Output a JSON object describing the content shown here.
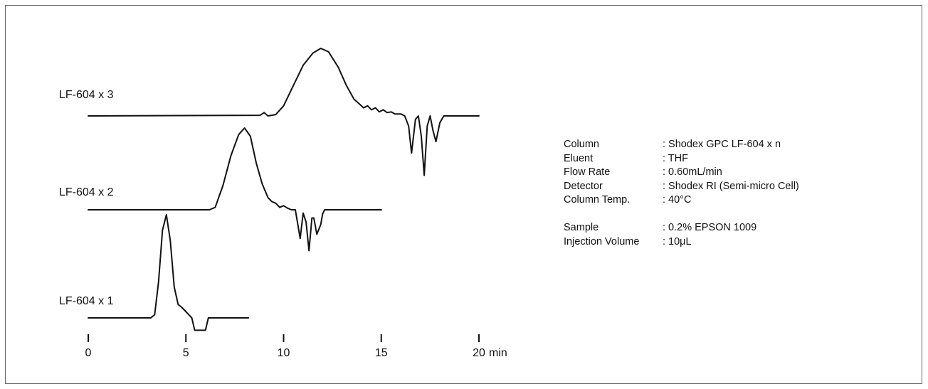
{
  "chart_data": {
    "type": "line",
    "xlabel": "min",
    "x_ticks": [
      "0",
      "5",
      "10",
      "15",
      "20"
    ],
    "x_tick_values": [
      0,
      5,
      10,
      15,
      20
    ],
    "x_unit_on_last_tick": "min",
    "xlim": [
      0,
      20
    ],
    "grid": false,
    "series": [
      {
        "name": "LF-604 x 3",
        "points": [
          [
            0,
            0
          ],
          [
            8.8,
            0.01
          ],
          [
            9.0,
            0.05
          ],
          [
            9.2,
            0.0
          ],
          [
            9.6,
            0.02
          ],
          [
            10.0,
            0.15
          ],
          [
            10.5,
            0.45
          ],
          [
            11.0,
            0.75
          ],
          [
            11.5,
            0.93
          ],
          [
            11.9,
            1.0
          ],
          [
            12.3,
            0.95
          ],
          [
            12.8,
            0.72
          ],
          [
            13.2,
            0.46
          ],
          [
            13.6,
            0.25
          ],
          [
            13.9,
            0.17
          ],
          [
            14.1,
            0.12
          ],
          [
            14.3,
            0.15
          ],
          [
            14.5,
            0.09
          ],
          [
            14.7,
            0.12
          ],
          [
            14.9,
            0.06
          ],
          [
            15.1,
            0.09
          ],
          [
            15.3,
            0.05
          ],
          [
            15.5,
            0.06
          ],
          [
            15.7,
            0.03
          ],
          [
            16.0,
            0.03
          ],
          [
            16.2,
            0.0
          ],
          [
            16.4,
            -0.15
          ],
          [
            16.55,
            -0.55
          ],
          [
            16.75,
            -0.05
          ],
          [
            16.9,
            0.0
          ],
          [
            17.05,
            -0.3
          ],
          [
            17.2,
            -0.88
          ],
          [
            17.35,
            -0.15
          ],
          [
            17.5,
            0.0
          ],
          [
            17.65,
            -0.22
          ],
          [
            17.8,
            -0.38
          ],
          [
            18.0,
            -0.1
          ],
          [
            18.2,
            0.0
          ],
          [
            20.0,
            0.0
          ]
        ]
      },
      {
        "name": "LF-604 x 2",
        "points": [
          [
            0,
            0
          ],
          [
            6.2,
            0.0
          ],
          [
            6.5,
            0.03
          ],
          [
            6.9,
            0.3
          ],
          [
            7.3,
            0.66
          ],
          [
            7.7,
            0.92
          ],
          [
            8.0,
            1.0
          ],
          [
            8.3,
            0.9
          ],
          [
            8.6,
            0.57
          ],
          [
            8.9,
            0.32
          ],
          [
            9.2,
            0.15
          ],
          [
            9.4,
            0.1
          ],
          [
            9.6,
            0.08
          ],
          [
            9.8,
            0.03
          ],
          [
            10.0,
            0.05
          ],
          [
            10.2,
            0.02
          ],
          [
            10.4,
            0.0
          ],
          [
            10.6,
            0.0
          ],
          [
            10.85,
            -0.35
          ],
          [
            11.0,
            -0.04
          ],
          [
            11.15,
            -0.15
          ],
          [
            11.3,
            -0.5
          ],
          [
            11.45,
            -0.1
          ],
          [
            11.55,
            -0.1
          ],
          [
            11.7,
            -0.3
          ],
          [
            11.9,
            -0.18
          ],
          [
            12.0,
            -0.05
          ],
          [
            12.1,
            0.0
          ],
          [
            15.0,
            0.0
          ]
        ]
      },
      {
        "name": "LF-604 x 1",
        "points": [
          [
            0,
            0
          ],
          [
            3.2,
            0.0
          ],
          [
            3.4,
            0.03
          ],
          [
            3.6,
            0.35
          ],
          [
            3.8,
            0.85
          ],
          [
            4.0,
            1.0
          ],
          [
            4.2,
            0.75
          ],
          [
            4.4,
            0.3
          ],
          [
            4.6,
            0.13
          ],
          [
            4.8,
            0.1
          ],
          [
            5.0,
            0.06
          ],
          [
            5.2,
            0.02
          ],
          [
            5.3,
            0.0
          ],
          [
            5.45,
            -0.12
          ],
          [
            6.0,
            -0.12
          ],
          [
            6.15,
            0.0
          ],
          [
            8.2,
            0.0
          ]
        ]
      }
    ]
  },
  "conditions": [
    {
      "label": "Column",
      "value": ": Shodex GPC LF-604 x n"
    },
    {
      "label": "Eluent",
      "value": ": THF"
    },
    {
      "label": "Flow Rate",
      "value": ": 0.60mL/min"
    },
    {
      "label": "Detector",
      "value": ": Shodex RI (Semi-micro Cell)"
    },
    {
      "label": "Column Temp.",
      "value": ": 40°C"
    }
  ],
  "sample_conditions": [
    {
      "label": "Sample",
      "value": ": 0.2% EPSON 1009"
    },
    {
      "label": "Injection Volume",
      "value": ": 10μL"
    }
  ]
}
